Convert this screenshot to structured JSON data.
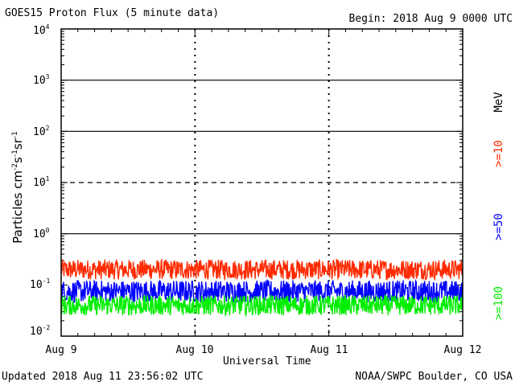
{
  "header": {
    "title": "GOES15 Proton Flux (5 minute data)",
    "begin": "Begin: 2018 Aug 9 0000 UTC"
  },
  "footer": {
    "updated": "Updated 2018 Aug 11 23:56:02 UTC",
    "credit": "NOAA/SWPC Boulder, CO USA"
  },
  "chart_data": {
    "type": "line",
    "title": "GOES15 Proton Flux (5 minute data)",
    "xlabel": "Universal Time",
    "ylabel": "Particles cm-2s-1sr-1",
    "y_scale": "log",
    "ylim": [
      0.01,
      10000
    ],
    "y_ticks": [
      {
        "base": "10",
        "exp": "4",
        "value": 10000
      },
      {
        "base": "10",
        "exp": "3",
        "value": 1000
      },
      {
        "base": "10",
        "exp": "2",
        "value": 100
      },
      {
        "base": "10",
        "exp": "1",
        "value": 10
      },
      {
        "base": "10",
        "exp": "0",
        "value": 1
      },
      {
        "base": "10",
        "exp": "-1",
        "value": 0.1
      },
      {
        "base": "10",
        "exp": "-2",
        "value": 0.01
      }
    ],
    "x_ticks": [
      "Aug 9",
      "Aug 10",
      "Aug 11",
      "Aug 12"
    ],
    "xlim_days": [
      0,
      3
    ],
    "threshold_lines": [
      {
        "value": 1000,
        "style": "solid"
      },
      {
        "value": 100,
        "style": "solid"
      },
      {
        "value": 10,
        "style": "dashed"
      },
      {
        "value": 1,
        "style": "solid"
      }
    ],
    "energy_unit": "MeV",
    "series": [
      {
        "name": ">=10",
        "color": "#ff2a00",
        "baseline": 0.2,
        "spread": 0.45,
        "peak_max": 0.45
      },
      {
        "name": ">=50",
        "color": "#0000ff",
        "baseline": 0.075,
        "spread": 0.5,
        "peak_max": 0.15
      },
      {
        "name": ">=100",
        "color": "#00ee00",
        "baseline": 0.04,
        "spread": 0.45,
        "peak_max": 0.08
      }
    ]
  }
}
